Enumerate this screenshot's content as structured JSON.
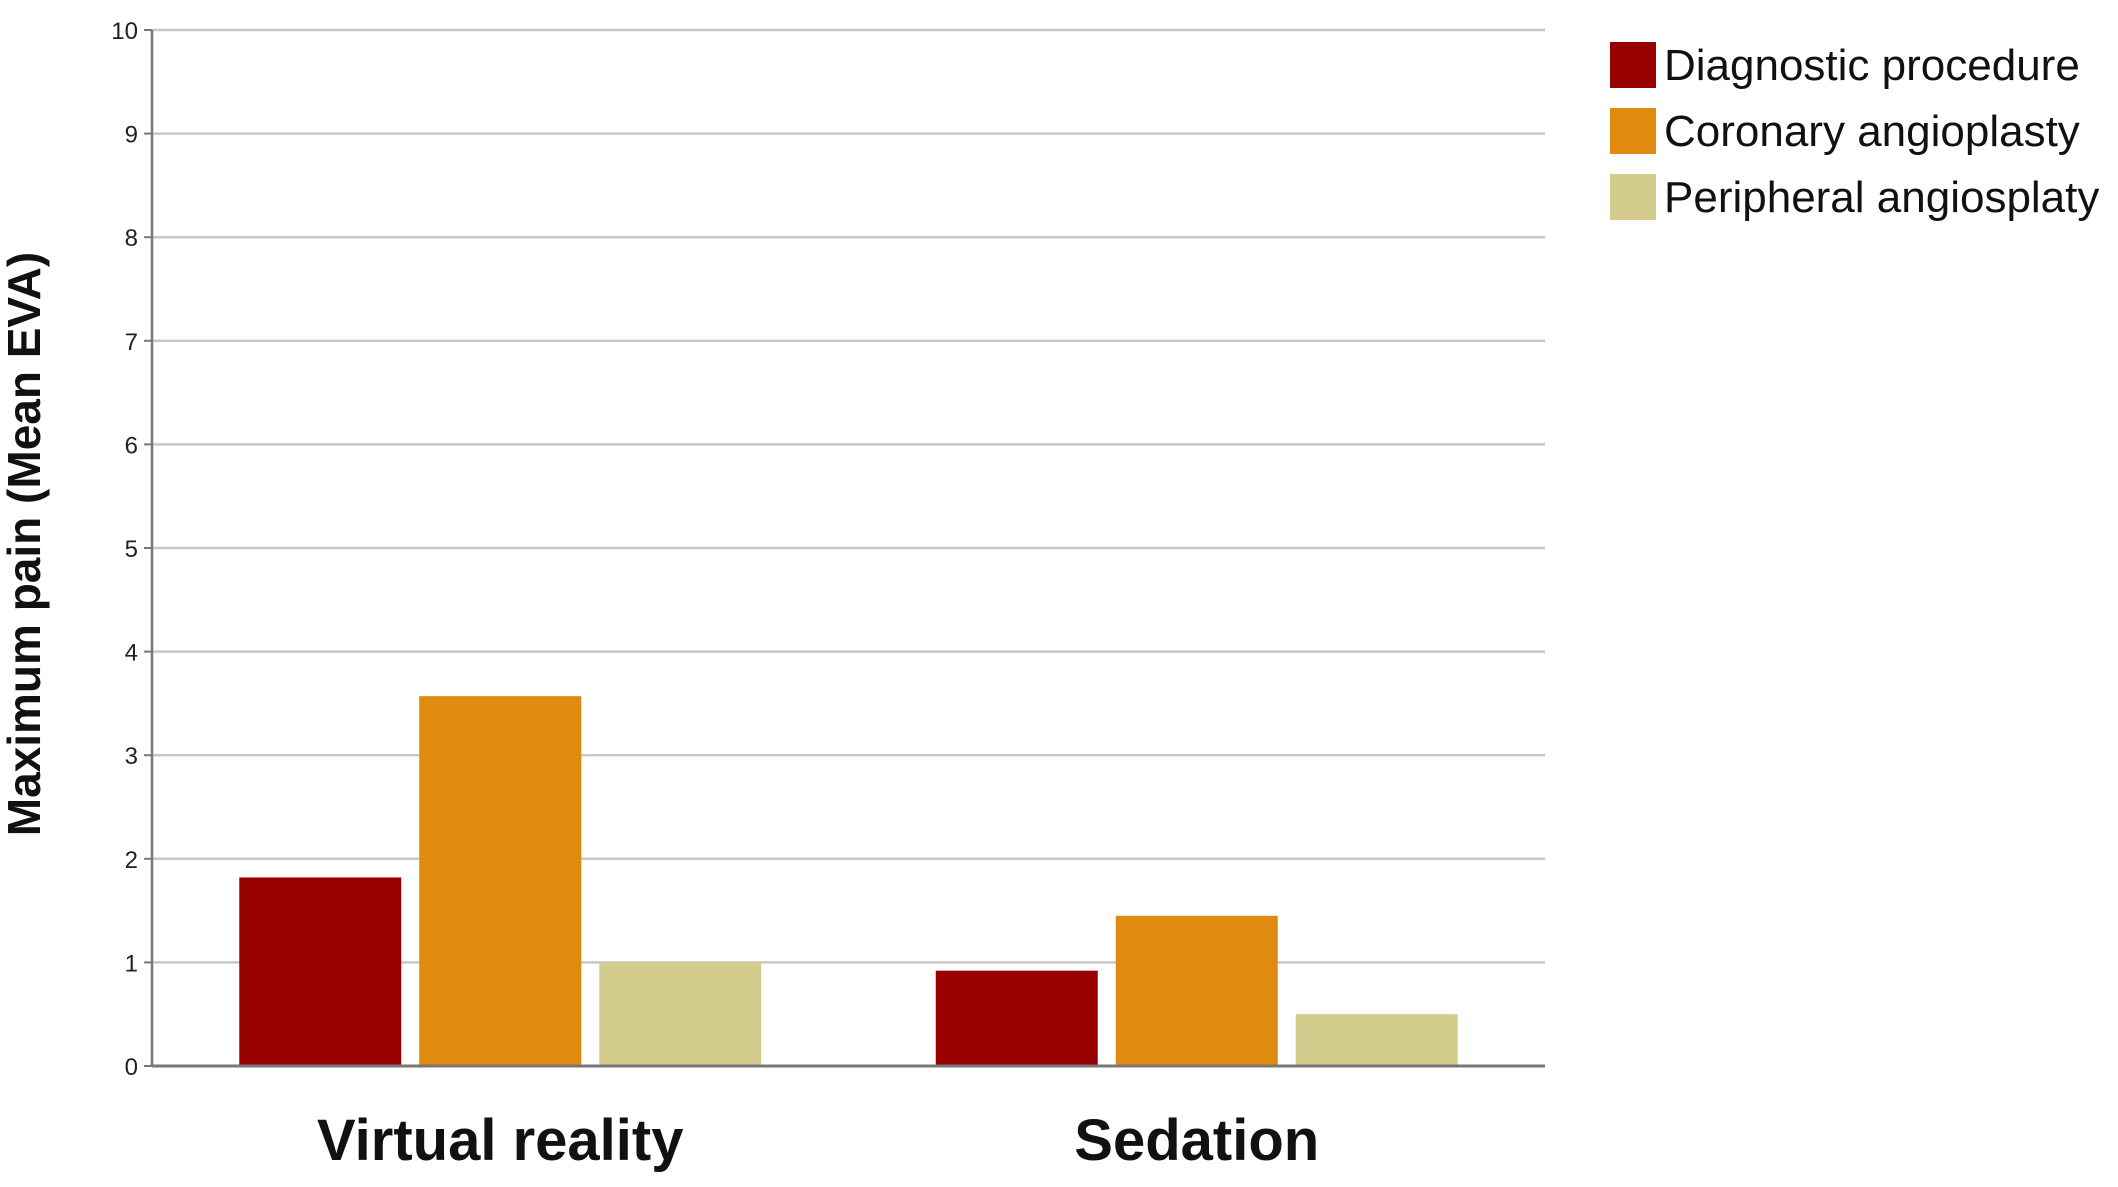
{
  "chart_data": {
    "type": "bar",
    "title": "",
    "xlabel": "",
    "ylabel": "Maximum pain (Mean EVA)",
    "categories": [
      "Virtual reality",
      "Sedation"
    ],
    "series": [
      {
        "name": "Diagnostic procedure",
        "color": "#990000",
        "values": [
          1.82,
          0.92
        ]
      },
      {
        "name": "Coronary angioplasty",
        "color": "#E08A10",
        "values": [
          3.57,
          1.45
        ]
      },
      {
        "name": "Peripheral angiosplaty",
        "color": "#D3CC8C",
        "values": [
          1.0,
          0.5
        ]
      }
    ],
    "ylim": [
      0,
      10
    ],
    "yticks": [
      "0",
      "1",
      "2",
      "3",
      "4",
      "5",
      "6",
      "7",
      "8",
      "9",
      "10"
    ],
    "grid": true,
    "legend_position": "top-right",
    "colors": {
      "grid": "#c8c8c8",
      "axis": "#777777"
    }
  }
}
